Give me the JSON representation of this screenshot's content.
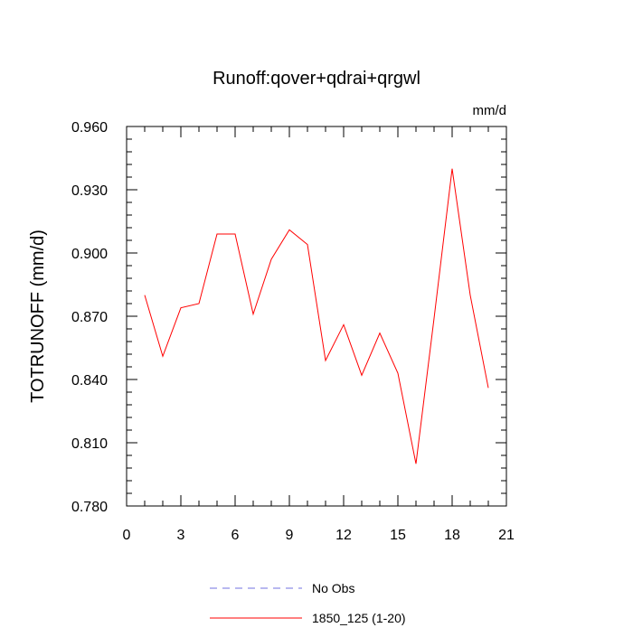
{
  "chart_data": {
    "type": "line",
    "title": "Runoff:qover+qdrai+qrgwl",
    "units_label": "mm/d",
    "xlabel": "",
    "ylabel": "TOTRUNOFF  (mm/d)",
    "xlim": [
      0,
      21
    ],
    "ylim": [
      0.78,
      0.96
    ],
    "x_ticks": [
      0,
      3,
      6,
      9,
      12,
      15,
      18,
      21
    ],
    "x_tick_labels": [
      "0",
      "3",
      "6",
      "9",
      "12",
      "15",
      "18",
      "21"
    ],
    "y_ticks": [
      0.78,
      0.81,
      0.84,
      0.87,
      0.9,
      0.93,
      0.96
    ],
    "y_tick_labels": [
      "0.780",
      "0.810",
      "0.840",
      "0.870",
      "0.900",
      "0.930",
      "0.960"
    ],
    "grid": false,
    "legend_position": "bottom-center",
    "series": [
      {
        "name": "No Obs",
        "style": "dashed",
        "color": "#7070e0",
        "x": [],
        "values": []
      },
      {
        "name": "1850_125 (1-20)",
        "style": "solid",
        "color": "#ff0000",
        "x": [
          1,
          2,
          3,
          4,
          5,
          6,
          7,
          8,
          9,
          10,
          11,
          12,
          13,
          14,
          15,
          16,
          17,
          18,
          19,
          20
        ],
        "values": [
          0.88,
          0.851,
          0.874,
          0.876,
          0.909,
          0.909,
          0.871,
          0.897,
          0.911,
          0.904,
          0.849,
          0.866,
          0.842,
          0.862,
          0.843,
          0.8,
          0.869,
          0.94,
          0.88,
          0.836
        ]
      }
    ]
  }
}
